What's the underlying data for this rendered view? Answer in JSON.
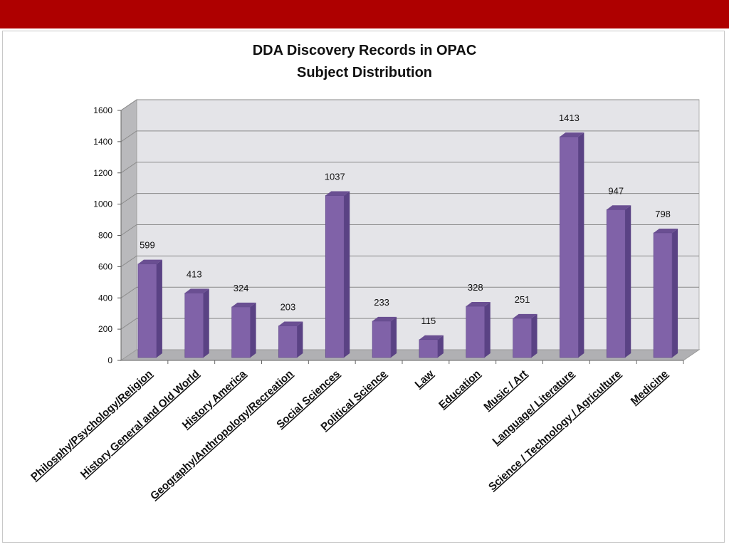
{
  "header": {
    "bar_color": "#ae0000"
  },
  "chart_data": {
    "type": "bar",
    "title": "DDA Discovery Records  in OPAC",
    "subtitle": "Subject Distribution",
    "categories": [
      "Philosphy/Psychology/Religion",
      "History General and Old World",
      "History  America",
      "Geography/Anthropology/Recreation",
      "Social Sciences",
      "Political Science",
      "Law",
      "Education",
      "Music / Art",
      "Language/ Literature",
      "Science / Technology / Agriculture",
      "Medicine"
    ],
    "values": [
      599,
      413,
      324,
      203,
      1037,
      233,
      115,
      328,
      251,
      1413,
      947,
      798
    ],
    "ylim": [
      0,
      1600
    ],
    "yticks": [
      0,
      200,
      400,
      600,
      800,
      1000,
      1200,
      1400,
      1600
    ],
    "xlabel": "",
    "ylabel": "",
    "grid": true,
    "legend": "none",
    "bar_color": "#8062a8",
    "bar_side_color": "#5a4284",
    "bar_top_color": "#6a4f92"
  }
}
